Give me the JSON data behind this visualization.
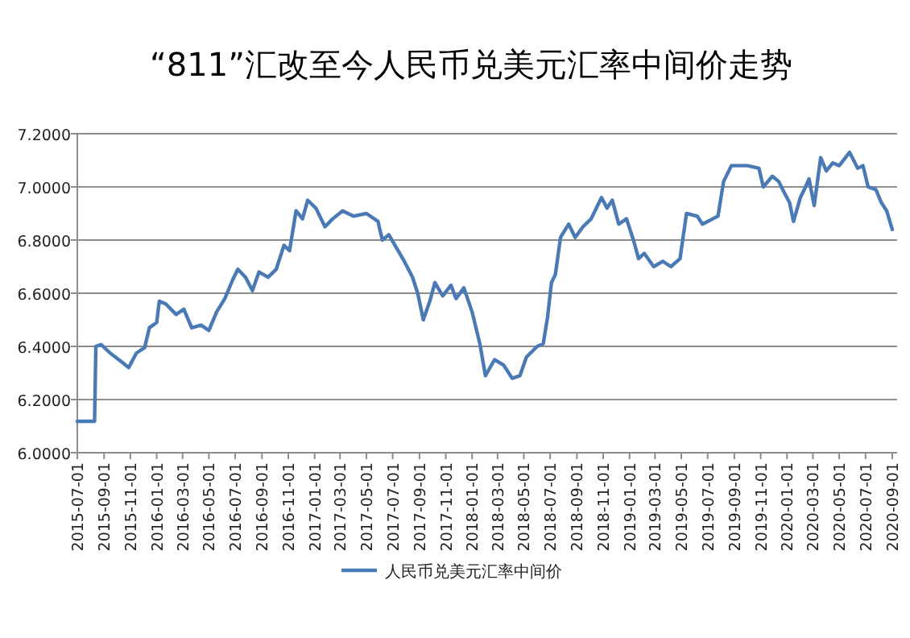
{
  "chart_data": {
    "type": "line",
    "title": "“811”汇改至今人民币兑美元汇率中间价走势",
    "x": [
      "2015-07-01",
      "2015-08-10",
      "2015-08-13",
      "2015-08-25",
      "2015-09-15",
      "2015-10-13",
      "2015-10-28",
      "2015-11-15",
      "2015-12-04",
      "2015-12-15",
      "2016-01-01",
      "2016-01-07",
      "2016-01-22",
      "2016-02-15",
      "2016-03-04",
      "2016-03-22",
      "2016-04-13",
      "2016-05-01",
      "2016-05-19",
      "2016-06-07",
      "2016-06-25",
      "2016-07-07",
      "2016-07-25",
      "2016-08-10",
      "2016-08-25",
      "2016-09-15",
      "2016-10-04",
      "2016-10-22",
      "2016-11-04",
      "2016-11-19",
      "2016-12-04",
      "2016-12-16",
      "2017-01-04",
      "2017-01-25",
      "2017-02-12",
      "2017-03-07",
      "2017-04-01",
      "2017-05-01",
      "2017-05-28",
      "2017-06-07",
      "2017-06-22",
      "2017-07-10",
      "2017-07-28",
      "2017-08-16",
      "2017-08-28",
      "2017-09-10",
      "2017-09-25",
      "2017-10-07",
      "2017-10-25",
      "2017-11-13",
      "2017-11-25",
      "2017-12-13",
      "2018-01-01",
      "2018-01-19",
      "2018-02-01",
      "2018-02-22",
      "2018-03-15",
      "2018-04-04",
      "2018-04-22",
      "2018-05-07",
      "2018-06-01",
      "2018-06-15",
      "2018-06-25",
      "2018-07-04",
      "2018-07-13",
      "2018-07-25",
      "2018-08-13",
      "2018-08-28",
      "2018-09-15",
      "2018-10-04",
      "2018-10-28",
      "2018-11-10",
      "2018-11-22",
      "2018-12-07",
      "2018-12-25",
      "2019-01-10",
      "2019-01-22",
      "2019-02-04",
      "2019-02-26",
      "2019-03-19",
      "2019-04-07",
      "2019-04-28",
      "2019-05-13",
      "2019-06-07",
      "2019-06-19",
      "2019-07-13",
      "2019-07-25",
      "2019-08-07",
      "2019-08-25",
      "2019-10-01",
      "2019-10-28",
      "2019-11-07",
      "2019-11-28",
      "2019-12-13",
      "2019-12-22",
      "2020-01-07",
      "2020-01-16",
      "2020-02-01",
      "2020-02-10",
      "2020-02-21",
      "2020-03-04",
      "2020-03-19",
      "2020-04-01",
      "2020-04-16",
      "2020-05-01",
      "2020-05-25",
      "2020-06-13",
      "2020-06-25",
      "2020-07-07",
      "2020-07-25",
      "2020-08-07",
      "2020-08-19",
      "2020-09-01"
    ],
    "series": [
      {
        "name": "人民币兑美元汇率中间价",
        "color": "#4a7ab5",
        "values": [
          6.118,
          6.118,
          6.4,
          6.407,
          6.375,
          6.34,
          6.32,
          6.375,
          6.395,
          6.47,
          6.49,
          6.57,
          6.56,
          6.52,
          6.54,
          6.47,
          6.48,
          6.46,
          6.53,
          6.58,
          6.65,
          6.69,
          6.66,
          6.61,
          6.68,
          6.66,
          6.69,
          6.78,
          6.76,
          6.91,
          6.88,
          6.95,
          6.92,
          6.85,
          6.88,
          6.91,
          6.89,
          6.9,
          6.87,
          6.8,
          6.82,
          6.77,
          6.72,
          6.66,
          6.6,
          6.5,
          6.57,
          6.64,
          6.59,
          6.63,
          6.58,
          6.62,
          6.53,
          6.41,
          6.29,
          6.35,
          6.33,
          6.28,
          6.29,
          6.36,
          6.4,
          6.41,
          6.51,
          6.64,
          6.67,
          6.81,
          6.86,
          6.81,
          6.85,
          6.88,
          6.96,
          6.92,
          6.95,
          6.86,
          6.88,
          6.8,
          6.73,
          6.75,
          6.7,
          6.72,
          6.7,
          6.73,
          6.9,
          6.89,
          6.86,
          6.88,
          6.89,
          7.02,
          7.08,
          7.08,
          7.07,
          7.0,
          7.04,
          7.02,
          6.99,
          6.94,
          6.87,
          6.96,
          6.99,
          7.03,
          6.93,
          7.11,
          7.06,
          7.09,
          7.08,
          7.13,
          7.07,
          7.08,
          7.0,
          6.99,
          6.94,
          6.91,
          6.84
        ]
      }
    ],
    "xlim": [
      "2015-07-01",
      "2020-09-01"
    ],
    "xticks": [
      "2015-07-01",
      "2015-09-01",
      "2015-11-01",
      "2016-01-01",
      "2016-03-01",
      "2016-05-01",
      "2016-07-01",
      "2016-09-01",
      "2016-11-01",
      "2017-01-01",
      "2017-03-01",
      "2017-05-01",
      "2017-07-01",
      "2017-09-01",
      "2017-11-01",
      "2018-01-01",
      "2018-03-01",
      "2018-05-01",
      "2018-07-01",
      "2018-09-01",
      "2018-11-01",
      "2019-01-01",
      "2019-03-01",
      "2019-05-01",
      "2019-07-01",
      "2019-09-01",
      "2019-11-01",
      "2020-01-01",
      "2020-03-01",
      "2020-05-01",
      "2020-07-01",
      "2020-09-01"
    ],
    "ylim": [
      6.0,
      7.2
    ],
    "yticks": [
      {
        "value": 6.0,
        "label": "6.0000"
      },
      {
        "value": 6.2,
        "label": "6.2000"
      },
      {
        "value": 6.4,
        "label": "6.4000"
      },
      {
        "value": 6.6,
        "label": "6.6000"
      },
      {
        "value": 6.8,
        "label": "6.8000"
      },
      {
        "value": 7.0,
        "label": "7.0000"
      },
      {
        "value": 7.2,
        "label": "7.2000"
      }
    ],
    "grid": "y",
    "legend": "bottom"
  }
}
